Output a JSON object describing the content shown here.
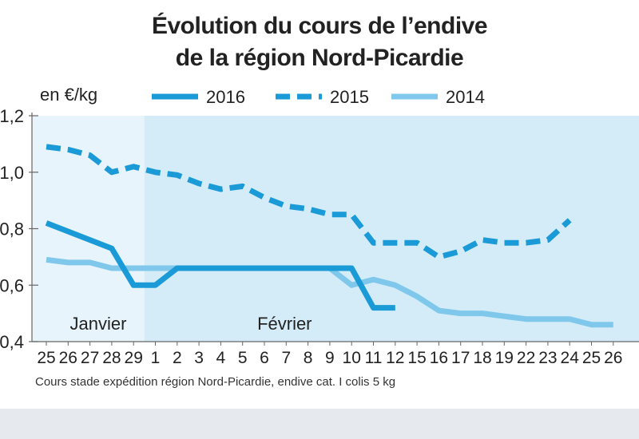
{
  "title_line1": "Évolution du cours de l’endive",
  "title_line2": "de la région Nord-Picardie",
  "unit_label": "en €/kg",
  "source_note": "Cours stade expédition région Nord-Picardie, endive cat. I colis 5 kg",
  "chart_data": {
    "type": "line",
    "title": "Évolution du cours de l’endive de la région Nord-Picardie",
    "ylabel": "en €/kg",
    "xlabel": "",
    "ylim": [
      0.4,
      1.2
    ],
    "yticks": [
      0.4,
      0.6,
      0.8,
      1.0,
      1.2
    ],
    "ytick_labels": [
      "0,4",
      "0,6",
      "0,8",
      "1,0",
      "1,2"
    ],
    "categories": [
      "25",
      "26",
      "27",
      "28",
      "29",
      "1",
      "2",
      "3",
      "4",
      "5",
      "6",
      "7",
      "8",
      "9",
      "10",
      "11",
      "12",
      "15",
      "16",
      "17",
      "18",
      "19",
      "22",
      "23",
      "24",
      "25",
      "26"
    ],
    "month_labels": [
      {
        "text": "Janvier",
        "start_index": 0
      },
      {
        "text": "Février",
        "start_index": 5
      }
    ],
    "legend_position": "top",
    "series": [
      {
        "name": "2016",
        "color": "#1a9ad6",
        "style": "solid-thick",
        "values": [
          0.82,
          0.79,
          0.76,
          0.73,
          0.6,
          0.6,
          0.66,
          0.66,
          0.66,
          0.66,
          0.66,
          0.66,
          0.66,
          0.66,
          0.66,
          0.52,
          0.52,
          null,
          null,
          null,
          null,
          null,
          null,
          null,
          null,
          null,
          null
        ]
      },
      {
        "name": "2015",
        "color": "#1a9ad6",
        "style": "dashed",
        "values": [
          1.09,
          1.08,
          1.06,
          1.0,
          1.02,
          1.0,
          0.99,
          0.96,
          0.94,
          0.95,
          0.91,
          0.88,
          0.87,
          0.85,
          0.85,
          0.75,
          0.75,
          0.75,
          0.7,
          0.72,
          0.76,
          0.75,
          0.75,
          0.76,
          0.83,
          null,
          null
        ]
      },
      {
        "name": "2014",
        "color": "#7fc8ec",
        "style": "solid",
        "values": [
          0.69,
          0.68,
          0.68,
          0.66,
          0.66,
          0.66,
          0.66,
          0.66,
          0.66,
          0.66,
          0.66,
          0.66,
          0.66,
          0.66,
          0.6,
          0.62,
          0.6,
          0.56,
          0.51,
          0.5,
          0.5,
          0.49,
          0.48,
          0.48,
          0.48,
          0.46,
          0.46
        ]
      }
    ],
    "colors": {
      "plot_background": "#e8f4fb",
      "plot_background_dark": "#d4ecf8",
      "axis": "#666666"
    }
  }
}
